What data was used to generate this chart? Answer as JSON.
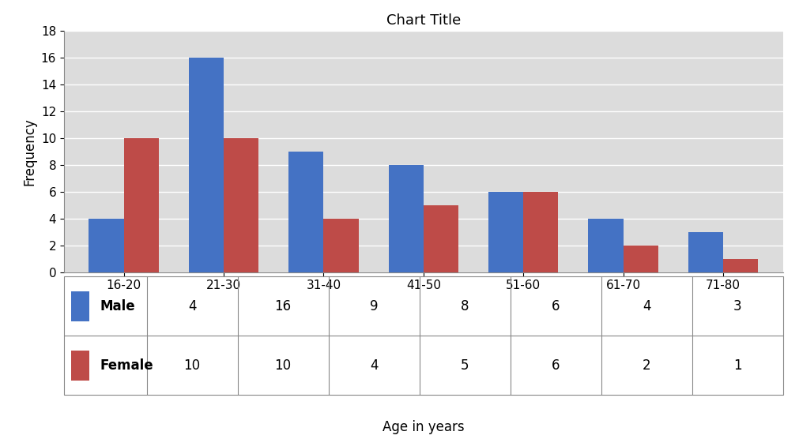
{
  "title": "Chart Title",
  "xlabel": "Age in years",
  "ylabel": "Frequency",
  "categories": [
    "16-20",
    "21-30",
    "31-40",
    "41-50",
    "51-60",
    "61-70",
    "71-80"
  ],
  "male_values": [
    4,
    16,
    9,
    8,
    6,
    4,
    3
  ],
  "female_values": [
    10,
    10,
    4,
    5,
    6,
    2,
    1
  ],
  "male_color": "#4472C4",
  "female_color": "#BE4B48",
  "ylim": [
    0,
    18
  ],
  "yticks": [
    0,
    2,
    4,
    6,
    8,
    10,
    12,
    14,
    16,
    18
  ],
  "bar_width": 0.35,
  "title_fontsize": 13,
  "label_fontsize": 12,
  "tick_fontsize": 11,
  "table_fontsize": 12,
  "background_color": "#DCDCDC",
  "grid_color": "#FFFFFF",
  "legend_labels": [
    "Male",
    "Female"
  ]
}
